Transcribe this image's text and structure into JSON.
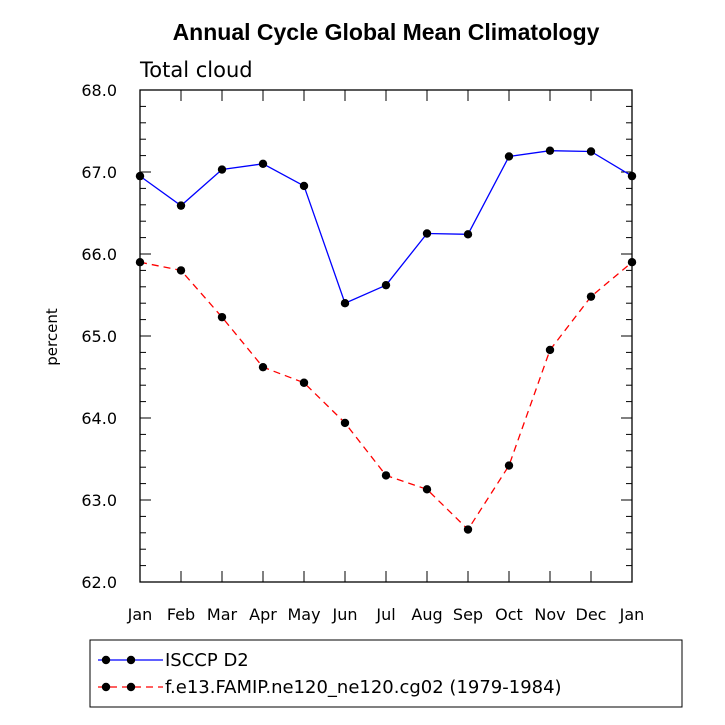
{
  "chart_data": {
    "type": "line",
    "title": "Annual Cycle Global Mean Climatology",
    "subtitle": "Total cloud",
    "xlabel": "",
    "ylabel": "percent",
    "categories": [
      "Jan",
      "Feb",
      "Mar",
      "Apr",
      "May",
      "Jun",
      "Jul",
      "Aug",
      "Sep",
      "Oct",
      "Nov",
      "Dec",
      "Jan"
    ],
    "ylim": [
      62.0,
      68.0
    ],
    "yticks": [
      "62.0",
      "63.0",
      "64.0",
      "65.0",
      "66.0",
      "67.0",
      "68.0"
    ],
    "grid": false,
    "legend_position": "bottom",
    "series": [
      {
        "name": "ISCCP D2",
        "color": "#0000ff",
        "style": "solid",
        "marker": "filled-circle",
        "values": [
          66.95,
          66.59,
          67.03,
          67.1,
          66.83,
          65.4,
          65.62,
          66.25,
          66.24,
          67.19,
          67.26,
          67.25,
          66.95
        ]
      },
      {
        "name": "f.e13.FAMIP.ne120_ne120.cg02 (1979-1984)",
        "color": "#ff0000",
        "style": "dashed",
        "marker": "filled-circle",
        "values": [
          65.9,
          65.8,
          65.23,
          64.62,
          64.43,
          63.94,
          63.3,
          63.13,
          62.64,
          63.42,
          64.83,
          65.48,
          65.9
        ]
      }
    ]
  }
}
